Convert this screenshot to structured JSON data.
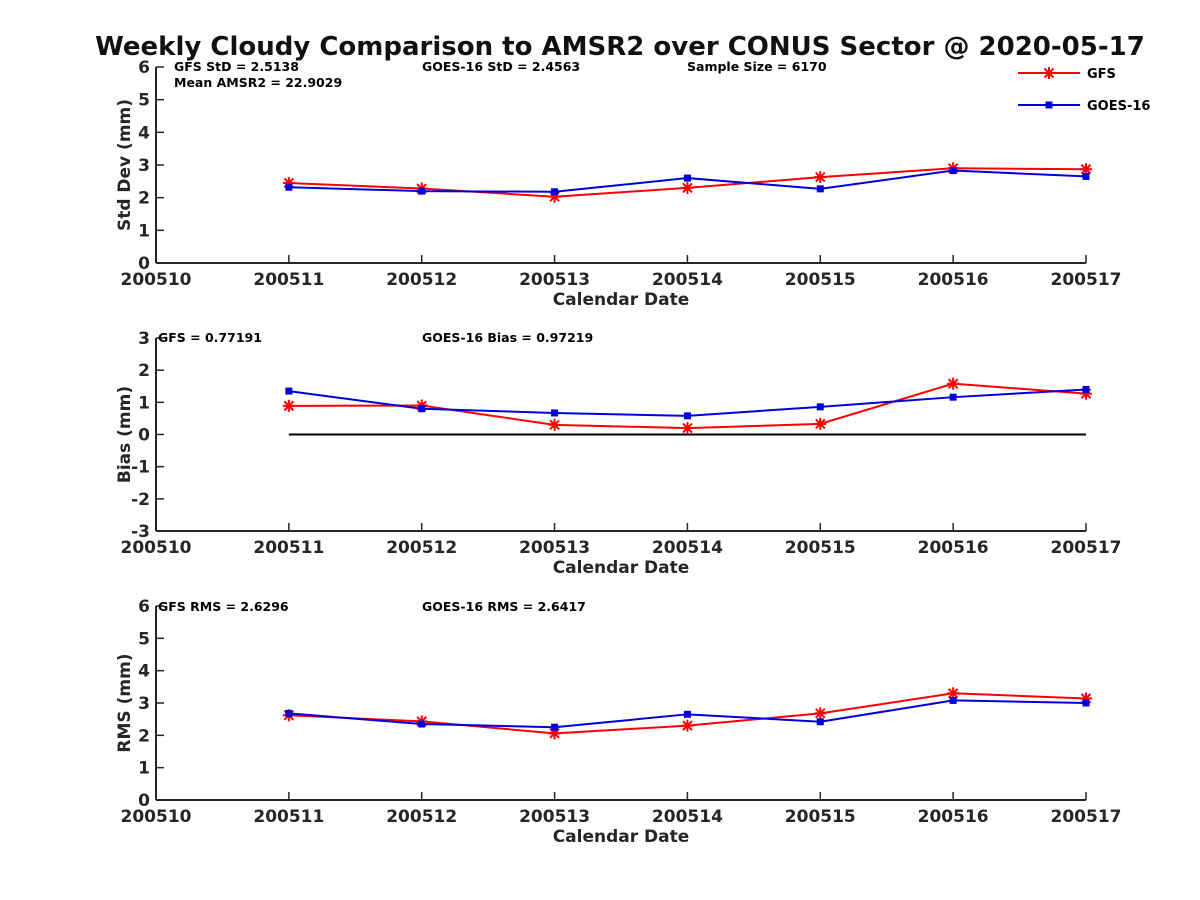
{
  "title": "Weekly Cloudy Comparison to AMSR2 over CONUS Sector @ 2020-05-17",
  "colors": {
    "GFS": "#ff0000",
    "GOES-16": "#0000dd",
    "axis": "#262626",
    "zero_line": "#000000"
  },
  "legend": {
    "placement": "top-right",
    "entries": [
      "GFS",
      "GOES-16"
    ]
  },
  "chart_data": [
    {
      "type": "line",
      "title": "",
      "xlabel": "Calendar Date",
      "ylabel": "Std Dev (mm)",
      "x_ticks": [
        "200510",
        "200511",
        "200512",
        "200513",
        "200514",
        "200515",
        "200516",
        "200517"
      ],
      "y_ticks": [
        "0",
        "1",
        "2",
        "3",
        "4",
        "5",
        "6"
      ],
      "ylim": [
        0,
        6
      ],
      "grid": false,
      "annotations": [
        "GFS StD = 2.5138",
        "Mean AMSR2 = 22.9029",
        "GOES-16 StD = 2.4563",
        "Sample Size = 6170"
      ],
      "series": [
        {
          "name": "GFS",
          "x": [
            "200511",
            "200512",
            "200513",
            "200514",
            "200515",
            "200516",
            "200517"
          ],
          "values": [
            2.45,
            2.28,
            2.03,
            2.3,
            2.63,
            2.9,
            2.87
          ]
        },
        {
          "name": "GOES-16",
          "x": [
            "200511",
            "200512",
            "200513",
            "200514",
            "200515",
            "200516",
            "200517"
          ],
          "values": [
            2.32,
            2.2,
            2.18,
            2.6,
            2.27,
            2.83,
            2.65
          ]
        }
      ]
    },
    {
      "type": "line",
      "title": "",
      "xlabel": "Calendar Date",
      "ylabel": "Bias (mm)",
      "x_ticks": [
        "200510",
        "200511",
        "200512",
        "200513",
        "200514",
        "200515",
        "200516",
        "200517"
      ],
      "y_ticks": [
        "-3",
        "-2",
        "-1",
        "0",
        "1",
        "2",
        "3"
      ],
      "ylim": [
        -3,
        3
      ],
      "grid": false,
      "zero_line": true,
      "annotations": [
        "GFS = 0.77191",
        "GOES-16 Bias  = 0.97219"
      ],
      "series": [
        {
          "name": "GFS",
          "x": [
            "200511",
            "200512",
            "200513",
            "200514",
            "200515",
            "200516",
            "200517"
          ],
          "values": [
            0.89,
            0.9,
            0.3,
            0.2,
            0.33,
            1.58,
            1.27
          ]
        },
        {
          "name": "GOES-16",
          "x": [
            "200511",
            "200512",
            "200513",
            "200514",
            "200515",
            "200516",
            "200517"
          ],
          "values": [
            1.35,
            0.8,
            0.67,
            0.58,
            0.86,
            1.16,
            1.4
          ]
        }
      ]
    },
    {
      "type": "line",
      "title": "",
      "xlabel": "Calendar Date",
      "ylabel": "RMS (mm)",
      "x_ticks": [
        "200510",
        "200511",
        "200512",
        "200513",
        "200514",
        "200515",
        "200516",
        "200517"
      ],
      "y_ticks": [
        "0",
        "1",
        "2",
        "3",
        "4",
        "5",
        "6"
      ],
      "ylim": [
        0,
        6
      ],
      "grid": false,
      "annotations": [
        "GFS RMS = 2.6296",
        "GOES-16 RMS = 2.6417"
      ],
      "series": [
        {
          "name": "GFS",
          "x": [
            "200511",
            "200512",
            "200513",
            "200514",
            "200515",
            "200516",
            "200517"
          ],
          "values": [
            2.62,
            2.43,
            2.06,
            2.3,
            2.68,
            3.3,
            3.14
          ]
        },
        {
          "name": "GOES-16",
          "x": [
            "200511",
            "200512",
            "200513",
            "200514",
            "200515",
            "200516",
            "200517"
          ],
          "values": [
            2.68,
            2.35,
            2.25,
            2.65,
            2.42,
            3.08,
            3.0
          ]
        }
      ]
    }
  ]
}
